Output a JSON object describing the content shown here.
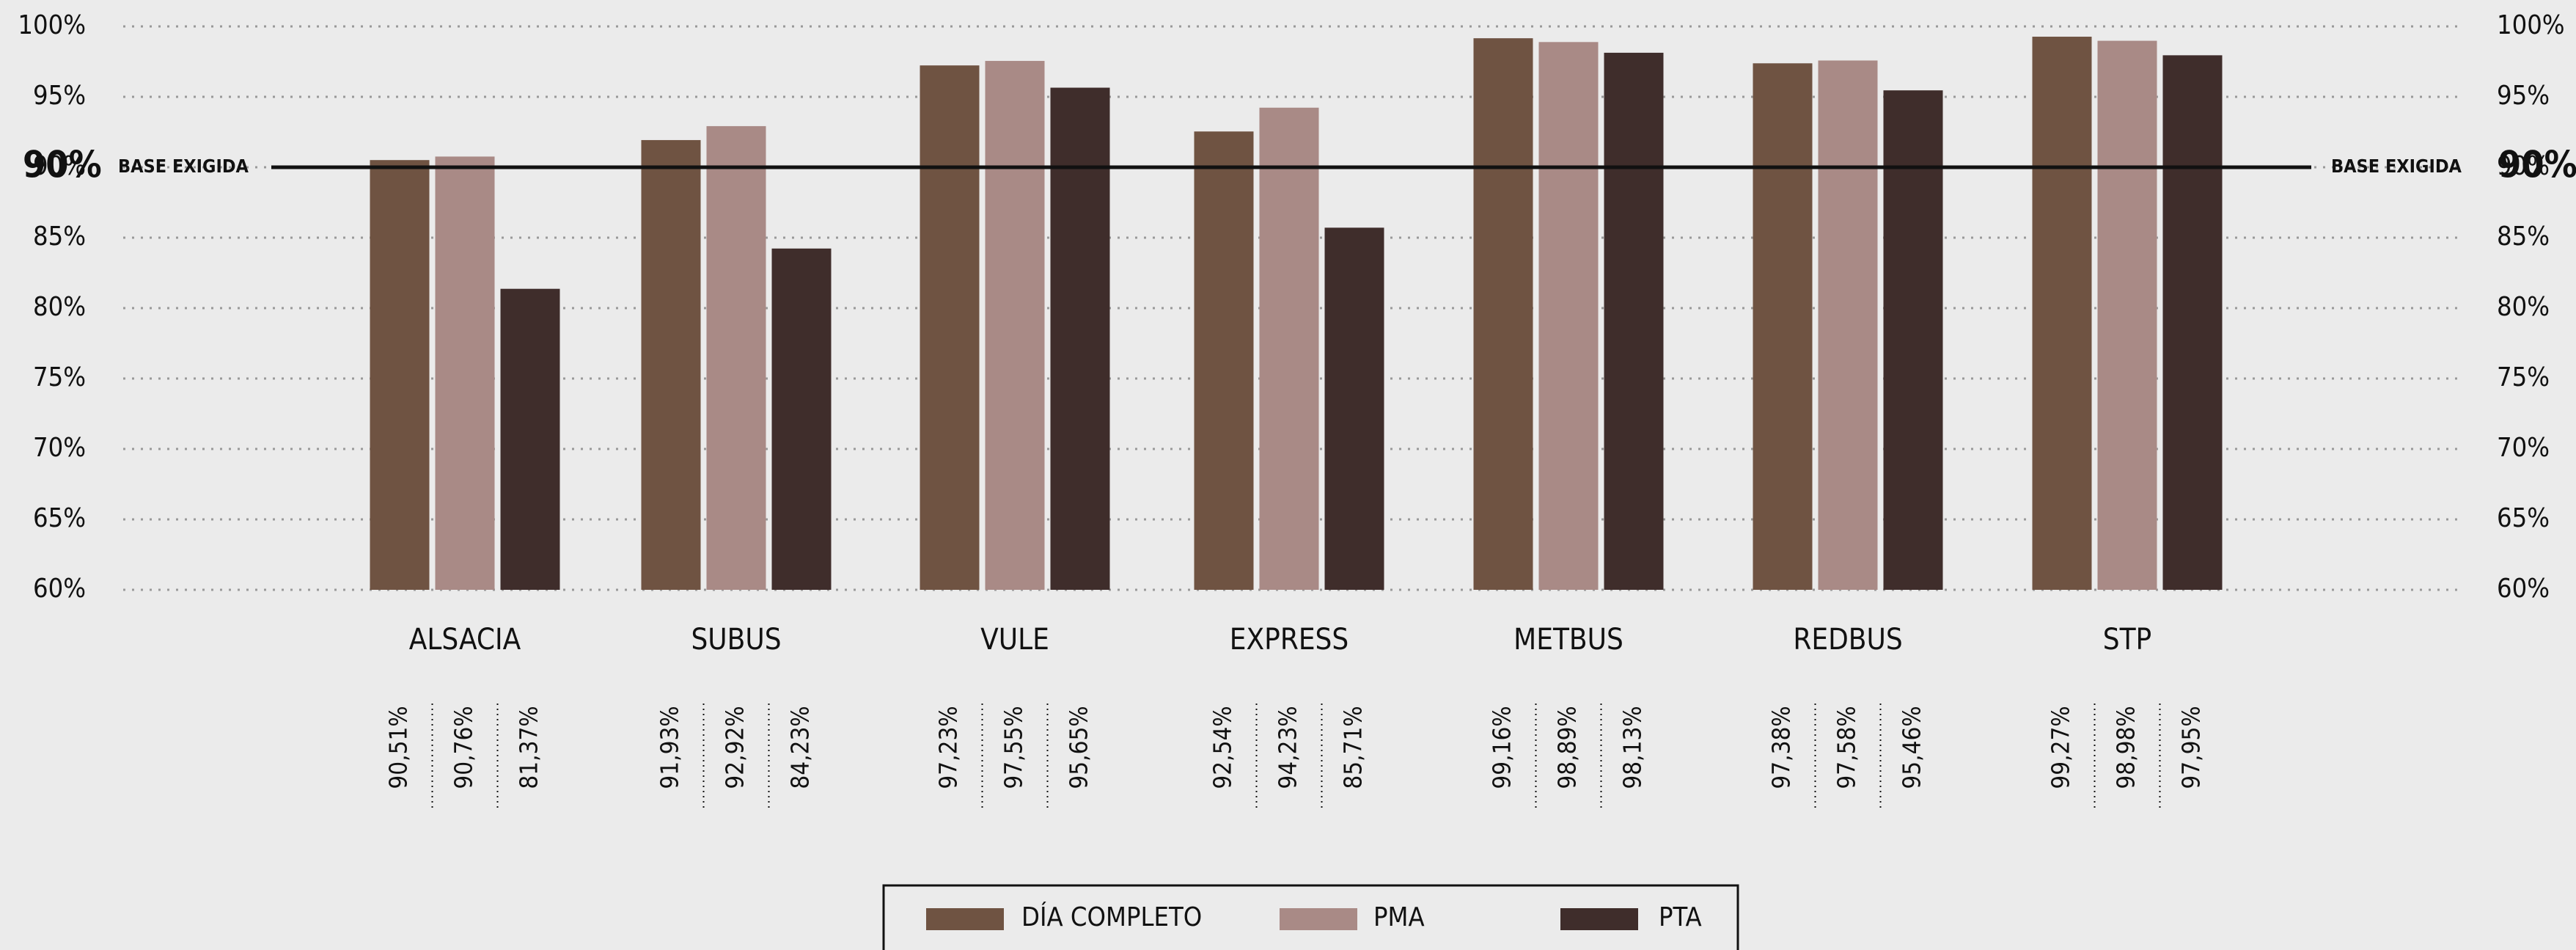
{
  "chart_data": {
    "type": "grouped_bar",
    "categories": [
      "ALSACIA",
      "SUBUS",
      "VULE",
      "EXPRESS",
      "METBUS",
      "REDBUS",
      "STP"
    ],
    "series": [
      {
        "name": "DÍA COMPLETO",
        "color": "#6f5342",
        "values": [
          90.51,
          91.93,
          97.23,
          92.54,
          99.16,
          97.38,
          99.27
        ],
        "value_labels": [
          "90,51%",
          "91,93%",
          "97,23%",
          "92,54%",
          "99,16%",
          "97,38%",
          "99,27%"
        ]
      },
      {
        "name": "PMA",
        "color": "#a98a86",
        "values": [
          90.76,
          92.92,
          97.55,
          94.23,
          98.89,
          97.58,
          98.98
        ],
        "value_labels": [
          "90,76%",
          "92,92%",
          "97,55%",
          "94,23%",
          "98,89%",
          "97,58%",
          "98,98%"
        ]
      },
      {
        "name": "PTA",
        "color": "#3f2d2b",
        "values": [
          81.37,
          84.23,
          95.65,
          85.71,
          98.13,
          95.46,
          97.95
        ],
        "value_labels": [
          "81,37%",
          "84,23%",
          "95,65%",
          "85,71%",
          "98,13%",
          "95,46%",
          "97,95%"
        ]
      }
    ],
    "ylim": [
      60,
      100
    ],
    "yticks": [
      {
        "value": 60,
        "label": "60%"
      },
      {
        "value": 65,
        "label": "65%"
      },
      {
        "value": 70,
        "label": "70%"
      },
      {
        "value": 75,
        "label": "75%"
      },
      {
        "value": 80,
        "label": "80%"
      },
      {
        "value": 85,
        "label": "85%"
      },
      {
        "value": 90,
        "label": "90%"
      },
      {
        "value": 95,
        "label": "95%"
      },
      {
        "value": 100,
        "label": "100%"
      }
    ],
    "reference_line": {
      "value": 90,
      "label": "BASE EXIGIDA",
      "value_label": "90%"
    },
    "grid": true,
    "legend": "bottom"
  }
}
